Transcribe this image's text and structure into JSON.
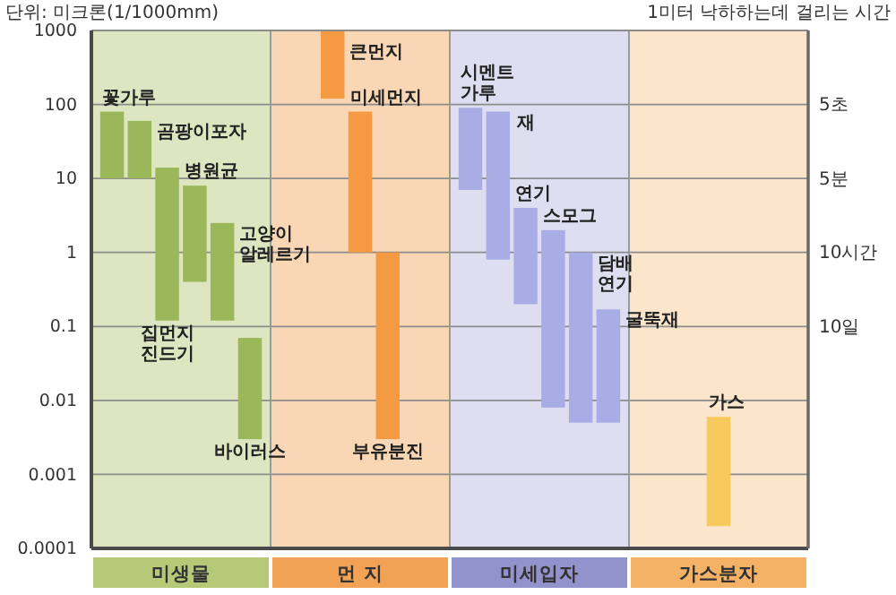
{
  "chart_data": {
    "type": "bar",
    "ylabel": "단위: 미크론(1/1000mm)",
    "y2label": "1미터 낙하하는데 걸리는 시간",
    "categories": [
      "미생물",
      "먼 지",
      "미세입자",
      "가스분자"
    ],
    "series": [
      {
        "name": "꽃가루",
        "color": "#9ab85a",
        "values": [
          70,
          null,
          null,
          null
        ],
        "base": [
          10,
          null,
          null,
          null
        ]
      },
      {
        "name": "곰팡이포자",
        "color": "#9ab85a",
        "values": [
          50,
          null,
          null,
          null
        ],
        "base": [
          10,
          null,
          null,
          null
        ]
      },
      {
        "name": "집먼지 진드기",
        "color": "#9ab85a",
        "values": [
          13.88,
          null,
          null,
          null
        ],
        "base": [
          0.12,
          null,
          null,
          null
        ]
      },
      {
        "name": "병원균",
        "color": "#9ab85a",
        "values": [
          7.6,
          null,
          null,
          null
        ],
        "base": [
          0.4,
          null,
          null,
          null
        ]
      },
      {
        "name": "고양이 알레르기",
        "color": "#9ab85a",
        "values": [
          2.38,
          null,
          null,
          null
        ],
        "base": [
          0.12,
          null,
          null,
          null
        ]
      },
      {
        "name": "바이러스",
        "color": "#9ab85a",
        "values": [
          0.067,
          null,
          null,
          null
        ],
        "base": [
          0.003,
          null,
          null,
          null
        ]
      },
      {
        "name": "큰먼지",
        "color": "#f39a43",
        "values": [
          null,
          880,
          null,
          null
        ],
        "base": [
          null,
          120,
          null,
          null
        ]
      },
      {
        "name": "미세먼지",
        "color": "#f39a43",
        "values": [
          null,
          79,
          null,
          null
        ],
        "base": [
          null,
          1,
          null,
          null
        ]
      },
      {
        "name": "부유분진",
        "color": "#f39a43",
        "values": [
          null,
          0.997,
          null,
          null
        ],
        "base": [
          null,
          0.003,
          null,
          null
        ]
      },
      {
        "name": "시멘트 가루",
        "color": "#a9ade6",
        "values": [
          null,
          null,
          83,
          null
        ],
        "base": [
          null,
          null,
          7,
          null
        ]
      },
      {
        "name": "재",
        "color": "#a9ade6",
        "values": [
          null,
          null,
          79.2,
          null
        ],
        "base": [
          null,
          null,
          0.8,
          null
        ]
      },
      {
        "name": "연기",
        "color": "#a9ade6",
        "values": [
          null,
          null,
          3.8,
          null
        ],
        "base": [
          null,
          null,
          0.2,
          null
        ]
      },
      {
        "name": "스모그",
        "color": "#a9ade6",
        "values": [
          null,
          null,
          1.992,
          null
        ],
        "base": [
          null,
          null,
          0.008,
          null
        ]
      },
      {
        "name": "담배 연기",
        "color": "#a9ade6",
        "values": [
          null,
          null,
          0.995,
          null
        ],
        "base": [
          null,
          null,
          0.005,
          null
        ]
      },
      {
        "name": "굴뚝재",
        "color": "#a9ade6",
        "values": [
          null,
          null,
          0.165,
          null
        ],
        "base": [
          null,
          null,
          0.005,
          null
        ]
      },
      {
        "name": "가스",
        "color": "#f8ca5e",
        "values": [
          null,
          null,
          null,
          0.0058
        ],
        "base": [
          null,
          null,
          null,
          0.0002
        ]
      }
    ],
    "log": true,
    "ylim": [
      0.0001,
      1000
    ],
    "yticks": [
      0.0001,
      0.001,
      0.01,
      0.1,
      1,
      10,
      100,
      1000
    ],
    "y2_categories": [
      null,
      "5초",
      "5분",
      "10시간",
      "10일",
      null,
      null,
      null
    ],
    "grid": "y",
    "bands": [
      {
        "axis": "x",
        "from": "미생물",
        "to": "미생물",
        "color": "#dde6c0"
      },
      {
        "axis": "x",
        "from": "먼 지",
        "to": "먼 지",
        "color": "#f9d6b4"
      },
      {
        "axis": "x",
        "from": "미세입자",
        "to": "미세입자",
        "color": "#dedef0"
      },
      {
        "axis": "x",
        "from": "가스분자",
        "to": "가스분자",
        "color": "#fbe5cb"
      }
    ]
  }
}
